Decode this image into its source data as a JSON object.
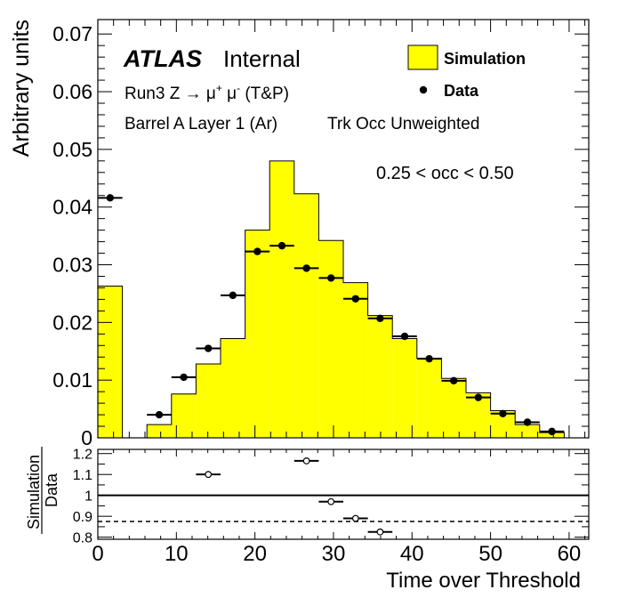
{
  "chart_data": {
    "type": "bar",
    "ylabel": "Arbitrary units",
    "xlabel": "Time over Threshold",
    "ratio_label_num": "Simulation",
    "ratio_label_den": "Data",
    "xlim": [
      0,
      62.5
    ],
    "ylim": [
      0,
      0.0725
    ],
    "ratio_ylim": [
      0.79,
      1.22
    ],
    "x_ticks": [
      0,
      10,
      20,
      30,
      40,
      50,
      60
    ],
    "y_ticks": [
      0,
      0.01,
      0.02,
      0.03,
      0.04,
      0.05,
      0.06,
      0.07
    ],
    "y_tick_labels": [
      "0",
      "0.01",
      "0.02",
      "0.03",
      "0.04",
      "0.05",
      "0.06",
      "0.07"
    ],
    "ratio_ticks": [
      0.8,
      0.9,
      1,
      1.1,
      1.2
    ],
    "ratio_tick_labels": [
      "0.8",
      "0.9",
      "1",
      "1.1",
      "1.2"
    ],
    "annotations": {
      "atlas": "ATLAS",
      "internal": "Internal",
      "line1_prefix": "Run3 Z → μ",
      "line1_sup1": "+",
      "line1_mid": " μ",
      "line1_sup2": "-",
      "line1_suffix": " (T&P)",
      "line2a": "Barrel A Layer 1 (Ar)",
      "line2b": "Trk Occ Unweighted",
      "occ_range": "0.25 < occ < 0.50"
    },
    "legend": {
      "placement": "top-right",
      "simulation_label": "Simulation",
      "data_label": "Data"
    },
    "bin_width": 3.125,
    "simulation": {
      "name": "Simulation",
      "color": "#ffff00",
      "bin_edges": [
        0,
        3.125,
        6.25,
        9.375,
        12.5,
        15.625,
        18.75,
        21.875,
        25,
        28.125,
        31.25,
        34.375,
        37.5,
        40.625,
        43.75,
        46.875,
        50,
        53.125,
        56.25,
        59.375,
        62.5
      ],
      "values": [
        0.0263,
        0,
        0.0023,
        0.0076,
        0.0128,
        0.0172,
        0.036,
        0.048,
        0.0423,
        0.0342,
        0.0269,
        0.0212,
        0.0172,
        0.0138,
        0.0103,
        0.0078,
        0.0047,
        0.0023,
        0.0009,
        0
      ]
    },
    "data": {
      "name": "Data",
      "x": [
        1.5625,
        7.8125,
        10.9375,
        14.0625,
        17.1875,
        20.3125,
        23.4375,
        26.5625,
        29.6875,
        32.8125,
        35.9375,
        39.0625,
        42.1875,
        45.3125,
        48.4375,
        51.5625,
        54.6875,
        57.8125
      ],
      "y": [
        0.0416,
        0.004,
        0.0105,
        0.0155,
        0.0247,
        0.0323,
        0.0333,
        0.0294,
        0.0277,
        0.0241,
        0.0207,
        0.0176,
        0.0137,
        0.0099,
        0.007,
        0.0042,
        0.0027,
        0.0011
      ]
    },
    "ratio": {
      "x": [
        14.0625,
        26.5625,
        29.6875,
        32.8125,
        35.9375
      ],
      "y": [
        1.1,
        1.165,
        0.97,
        0.89,
        0.825
      ]
    },
    "ratio_reference": 1.0,
    "ratio_dashed": 0.875
  }
}
